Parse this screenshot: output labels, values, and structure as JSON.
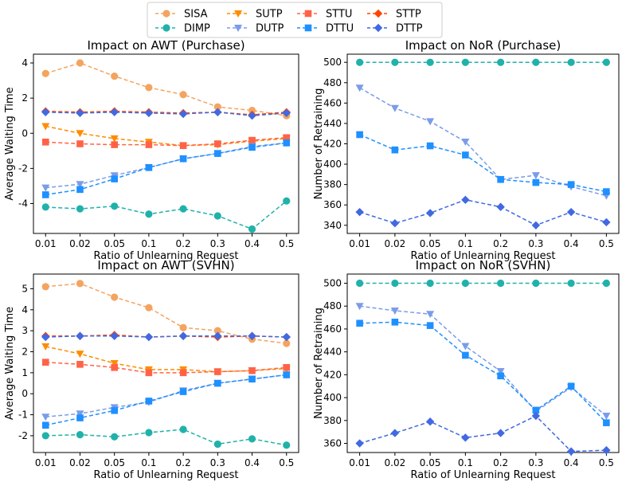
{
  "legend": [
    {
      "key": "SISA",
      "label": "SISA",
      "color": "#f4a460",
      "marker": "circle"
    },
    {
      "key": "DIMP",
      "label": "DIMP",
      "color": "#20b2aa",
      "marker": "circle"
    },
    {
      "key": "SUTP",
      "label": "SUTP",
      "color": "#ff8c00",
      "marker": "triangle-down"
    },
    {
      "key": "DUTP",
      "label": "DUTP",
      "color": "#7b9ce8",
      "marker": "triangle-down"
    },
    {
      "key": "STTU",
      "label": "STTU",
      "color": "#ff6347",
      "marker": "square"
    },
    {
      "key": "DTTU",
      "label": "DTTU",
      "color": "#1e90ff",
      "marker": "square"
    },
    {
      "key": "STTP",
      "label": "STTP",
      "color": "#ff4500",
      "marker": "diamond"
    },
    {
      "key": "DTTP",
      "label": "DTTP",
      "color": "#4169e1",
      "marker": "diamond"
    }
  ],
  "chart_data": [
    {
      "type": "line",
      "title": "Impact on AWT (Purchase)",
      "xlabel": "Ratio of Unlearning Request",
      "ylabel": "Average Waiting Time",
      "categories": [
        "0.01",
        "0.02",
        "0.05",
        "0.1",
        "0.2",
        "0.3",
        "0.4",
        "0.5"
      ],
      "ylim": [
        -5.7,
        4.5
      ],
      "yticks": [
        -4,
        -2,
        0,
        2,
        4
      ],
      "series": [
        {
          "key": "SISA",
          "values": [
            3.4,
            4.0,
            3.25,
            2.6,
            2.2,
            1.5,
            1.3,
            1.0
          ]
        },
        {
          "key": "DIMP",
          "values": [
            -4.2,
            -4.3,
            -4.15,
            -4.6,
            -4.3,
            -4.7,
            -5.45,
            -3.85
          ]
        },
        {
          "key": "SUTP",
          "values": [
            0.4,
            0.0,
            -0.3,
            -0.5,
            -0.7,
            -0.65,
            -0.45,
            -0.3
          ]
        },
        {
          "key": "STTU",
          "values": [
            -0.5,
            -0.6,
            -0.65,
            -0.65,
            -0.7,
            -0.6,
            -0.4,
            -0.25
          ]
        },
        {
          "key": "STTP",
          "values": [
            1.25,
            1.2,
            1.25,
            1.2,
            1.15,
            1.2,
            1.05,
            1.2
          ]
        },
        {
          "key": "DUTP",
          "values": [
            -3.1,
            -2.9,
            -2.4,
            -1.95,
            -1.45,
            -1.15,
            -0.75,
            -0.55
          ]
        },
        {
          "key": "DTTU",
          "values": [
            -3.5,
            -3.2,
            -2.6,
            -1.95,
            -1.45,
            -1.15,
            -0.8,
            -0.55
          ]
        },
        {
          "key": "DTTP",
          "values": [
            1.2,
            1.15,
            1.2,
            1.15,
            1.1,
            1.2,
            1.0,
            1.15
          ]
        }
      ]
    },
    {
      "type": "line",
      "title": "Impact on NoR (Purchase)",
      "xlabel": "Ratio of Unlearning Request",
      "ylabel": "Number of Retraining",
      "categories": [
        "0.01",
        "0.02",
        "0.05",
        "0.1",
        "0.2",
        "0.3",
        "0.4",
        "0.5"
      ],
      "ylim": [
        332,
        508
      ],
      "yticks": [
        340,
        360,
        380,
        400,
        420,
        440,
        460,
        480,
        500
      ],
      "series": [
        {
          "key": "DIMP",
          "values": [
            500,
            500,
            500,
            500,
            500,
            500,
            500,
            500
          ]
        },
        {
          "key": "DUTP",
          "values": [
            475,
            455,
            442,
            422,
            385,
            389,
            378,
            369
          ]
        },
        {
          "key": "DTTU",
          "values": [
            429,
            414,
            418,
            409,
            385,
            382,
            380,
            373
          ]
        },
        {
          "key": "DTTP",
          "values": [
            353,
            342,
            352,
            365,
            358,
            340,
            353,
            343
          ]
        }
      ]
    },
    {
      "type": "line",
      "title": "Impact on AWT (SVHN)",
      "xlabel": "Ratio of Unlearning Request",
      "ylabel": "Average Waiting Time",
      "categories": [
        "0.01",
        "0.02",
        "0.05",
        "0.1",
        "0.2",
        "0.3",
        "0.4",
        "0.5"
      ],
      "ylim": [
        -2.8,
        5.7
      ],
      "yticks": [
        -2,
        -1,
        0,
        1,
        2,
        3,
        4,
        5
      ],
      "series": [
        {
          "key": "SISA",
          "values": [
            5.1,
            5.25,
            4.6,
            4.1,
            3.15,
            3.0,
            2.6,
            2.4
          ]
        },
        {
          "key": "DIMP",
          "values": [
            -2.0,
            -1.95,
            -2.05,
            -1.85,
            -1.7,
            -2.4,
            -2.15,
            -2.45
          ]
        },
        {
          "key": "SUTP",
          "values": [
            2.25,
            1.9,
            1.45,
            1.15,
            1.15,
            1.05,
            1.1,
            1.2
          ]
        },
        {
          "key": "STTU",
          "values": [
            1.5,
            1.4,
            1.25,
            1.0,
            1.0,
            1.05,
            1.1,
            1.25
          ]
        },
        {
          "key": "STTP",
          "values": [
            2.75,
            2.75,
            2.8,
            2.7,
            2.75,
            2.7,
            2.75,
            2.7
          ]
        },
        {
          "key": "DUTP",
          "values": [
            -1.1,
            -0.95,
            -0.65,
            -0.4,
            0.15,
            0.5,
            0.7,
            0.9
          ]
        },
        {
          "key": "DTTU",
          "values": [
            -1.5,
            -1.15,
            -0.8,
            -0.35,
            0.1,
            0.5,
            0.7,
            0.9
          ]
        },
        {
          "key": "DTTP",
          "values": [
            2.7,
            2.75,
            2.75,
            2.7,
            2.75,
            2.75,
            2.75,
            2.7
          ]
        }
      ]
    },
    {
      "type": "line",
      "title": "Impact on NoR (SVHN)",
      "xlabel": "Ratio of Unlearning Request",
      "ylabel": "Number of Retraining",
      "categories": [
        "0.01",
        "0.02",
        "0.05",
        "0.1",
        "0.2",
        "0.3",
        "0.4",
        "0.5"
      ],
      "ylim": [
        352,
        508
      ],
      "yticks": [
        360,
        380,
        400,
        420,
        440,
        460,
        480,
        500
      ],
      "series": [
        {
          "key": "DIMP",
          "values": [
            500,
            500,
            500,
            500,
            500,
            500,
            500,
            500
          ]
        },
        {
          "key": "DUTP",
          "values": [
            480,
            476,
            473,
            445,
            423,
            388,
            409,
            384
          ]
        },
        {
          "key": "DTTU",
          "values": [
            465,
            466,
            463,
            437,
            419,
            389,
            410,
            378
          ]
        },
        {
          "key": "DTTP",
          "values": [
            360,
            369,
            379,
            365,
            369,
            384,
            353,
            354
          ]
        }
      ]
    }
  ]
}
